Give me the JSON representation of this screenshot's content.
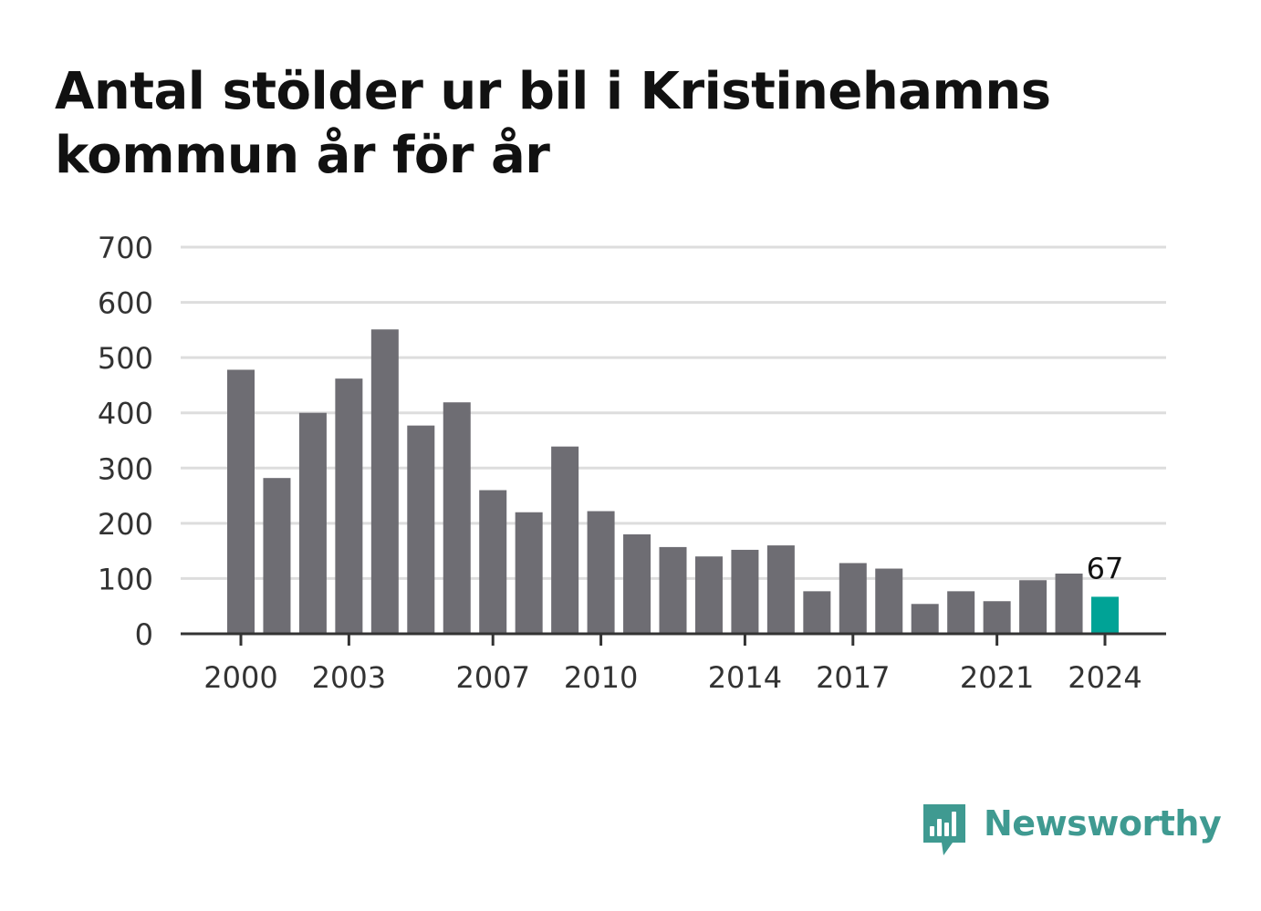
{
  "title": "Antal stölder ur bil i Kristinehamns kommun år för år",
  "brand": {
    "name": "Newsworthy",
    "icon": "newsworthy-logo-icon",
    "color": "#3f9a91"
  },
  "chart_data": {
    "type": "bar",
    "title": "Antal stölder ur bil i Kristinehamns kommun år för år",
    "xlabel": "",
    "ylabel": "",
    "categories": [
      "2000",
      "2001",
      "2002",
      "2003",
      "2004",
      "2005",
      "2006",
      "2007",
      "2008",
      "2009",
      "2010",
      "2011",
      "2012",
      "2013",
      "2014",
      "2015",
      "2016",
      "2017",
      "2018",
      "2019",
      "2020",
      "2021",
      "2022",
      "2023",
      "2024"
    ],
    "values": [
      478,
      282,
      400,
      462,
      551,
      377,
      419,
      260,
      220,
      339,
      222,
      180,
      157,
      140,
      152,
      160,
      77,
      128,
      118,
      54,
      77,
      59,
      97,
      109,
      67
    ],
    "ylim": [
      0,
      700
    ],
    "yticks": [
      0,
      100,
      200,
      300,
      400,
      500,
      600,
      700
    ],
    "xtick_labels": [
      "2000",
      "2003",
      "2007",
      "2010",
      "2014",
      "2017",
      "2021",
      "2024"
    ],
    "highlight": {
      "category": "2024",
      "label": "67"
    },
    "colors": {
      "bar": "#6e6d73",
      "highlight": "#00a396",
      "grid": "#dddddd",
      "axis": "#333333"
    },
    "grid": true
  }
}
